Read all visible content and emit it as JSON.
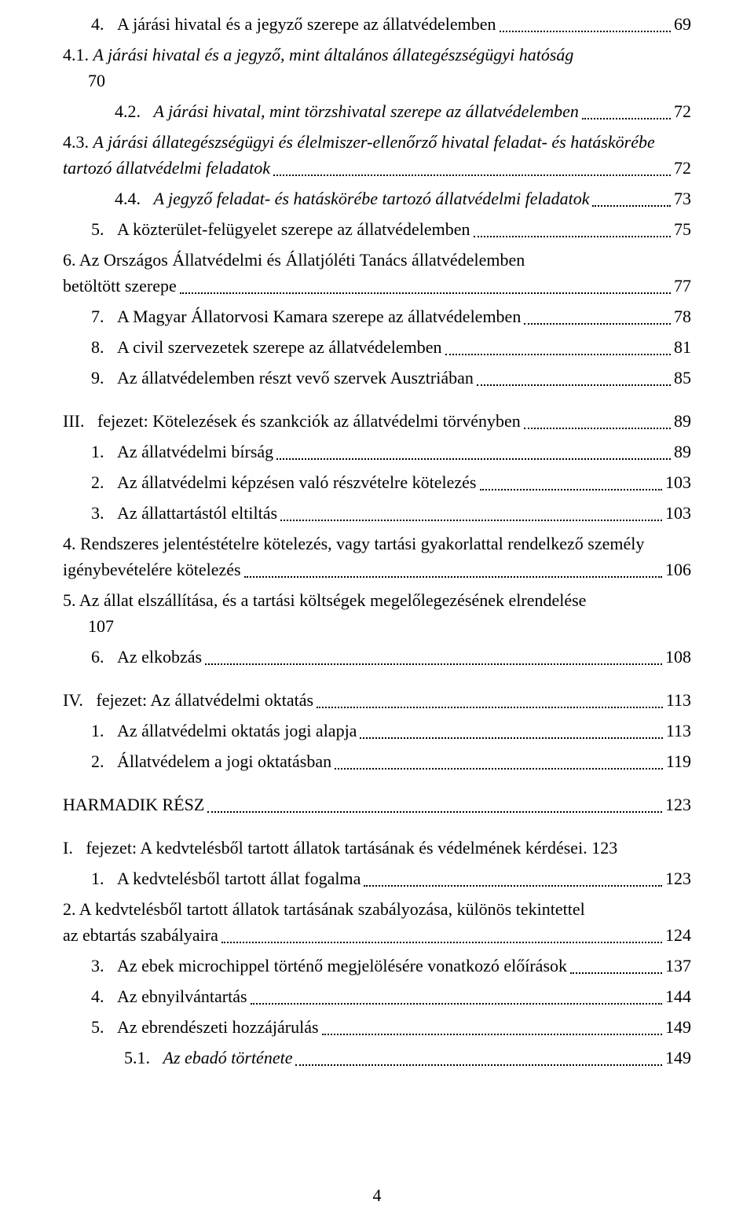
{
  "pageNumber": "4",
  "entries": [
    {
      "indent": "indent-1",
      "label": "4.   ",
      "title": "A járási hivatal és a jegyző szerepe az állatvédelemben",
      "page": "69",
      "italic": false,
      "wrap": false,
      "gap": false
    },
    {
      "indent": "indent-2",
      "label": "4.1.   ",
      "title": "A járási hivatal és a jegyző, mint általános állategészségügyi hatóság",
      "page": "",
      "italic": true,
      "wrap": true,
      "gap": false,
      "secondLine": "70"
    },
    {
      "indent": "indent-2",
      "label": "4.2.   ",
      "title": "A járási hivatal, mint törzshivatal szerepe az állatvédelemben",
      "page": " 72",
      "italic": true,
      "wrap": false,
      "gap": false
    },
    {
      "indent": "indent-2",
      "label": "4.3.   ",
      "title": "A járási állategészségügyi és élelmiszer-ellenőrző hivatal feladat- és hatáskörébe tartozó állatvédelmi feladatok",
      "page": " 72",
      "italic": true,
      "wrap": true,
      "gap": false
    },
    {
      "indent": "indent-2",
      "label": "4.4.   ",
      "title": "A jegyző feladat- és hatáskörébe tartozó állatvédelmi feladatok",
      "page": " 73",
      "italic": true,
      "wrap": false,
      "gap": false
    },
    {
      "indent": "indent-1",
      "label": "5.   ",
      "title": "A közterület-felügyelet szerepe az állatvédelemben",
      "page": " 75",
      "italic": false,
      "wrap": false,
      "gap": false
    },
    {
      "indent": "indent-1",
      "label": "6.   ",
      "title": "Az Országos Állatvédelmi és Állatjóléti Tanács állatvédelemben betöltött szerepe",
      "page": " 77",
      "italic": false,
      "wrap": true,
      "gap": false
    },
    {
      "indent": "indent-1",
      "label": "7.   ",
      "title": "A Magyar Állatorvosi Kamara szerepe az állatvédelemben",
      "page": " 78",
      "italic": false,
      "wrap": false,
      "gap": false
    },
    {
      "indent": "indent-1",
      "label": "8.   ",
      "title": "A civil szervezetek szerepe az állatvédelemben",
      "page": " 81",
      "italic": false,
      "wrap": false,
      "gap": false
    },
    {
      "indent": "indent-1",
      "label": "9.   ",
      "title": "Az állatvédelemben részt vevő szervek Ausztriában",
      "page": " 85",
      "italic": false,
      "wrap": false,
      "gap": false
    },
    {
      "indent": "indent-0",
      "label": "III.   ",
      "title": "fejezet: Kötelezések és szankciók az állatvédelmi törvényben",
      "page": " 89",
      "italic": false,
      "wrap": false,
      "gap": true
    },
    {
      "indent": "indent-1",
      "label": "1.   ",
      "title": "Az állatvédelmi bírság",
      "page": " 89",
      "italic": false,
      "wrap": false,
      "gap": false
    },
    {
      "indent": "indent-1",
      "label": "2.   ",
      "title": "Az állatvédelmi képzésen való részvételre kötelezés",
      "page": " 103",
      "italic": false,
      "wrap": false,
      "gap": false
    },
    {
      "indent": "indent-1",
      "label": "3.   ",
      "title": "Az állattartástól eltiltás",
      "page": " 103",
      "italic": false,
      "wrap": false,
      "gap": false
    },
    {
      "indent": "indent-1",
      "label": "4.   ",
      "title": "Rendszeres jelentéstételre kötelezés, vagy tartási gyakorlattal rendelkező személy igénybevételére kötelezés",
      "page": " 106",
      "italic": false,
      "wrap": true,
      "gap": false
    },
    {
      "indent": "indent-1",
      "label": "5.   ",
      "title": "Az állat elszállítása, és a tartási költségek megelőlegezésének elrendelése",
      "page": "",
      "italic": false,
      "wrap": true,
      "gap": false,
      "secondLine": "107"
    },
    {
      "indent": "indent-1",
      "label": "6.   ",
      "title": "Az elkobzás",
      "page": " 108",
      "italic": false,
      "wrap": false,
      "gap": false
    },
    {
      "indent": "indent-0",
      "label": "IV.   ",
      "title": "fejezet: Az állatvédelmi oktatás",
      "page": " 113",
      "italic": false,
      "wrap": false,
      "gap": true
    },
    {
      "indent": "indent-1",
      "label": "1.   ",
      "title": "Az állatvédelmi oktatás jogi alapja",
      "page": " 113",
      "italic": false,
      "wrap": false,
      "gap": false
    },
    {
      "indent": "indent-1",
      "label": "2.   ",
      "title": "Állatvédelem a jogi oktatásban",
      "page": " 119",
      "italic": false,
      "wrap": false,
      "gap": false
    },
    {
      "indent": "indent-0",
      "label": "",
      "title": "HARMADIK RÉSZ",
      "page": " 123",
      "italic": false,
      "wrap": false,
      "gap": true
    },
    {
      "indent": "indent-0",
      "label": "I.   ",
      "title": "fejezet: A kedvtelésből tartott állatok tartásának és védelmének kérdései",
      "page": ". 123",
      "italic": false,
      "wrap": false,
      "gap": true,
      "noDots": true
    },
    {
      "indent": "indent-1",
      "label": "1.   ",
      "title": "A kedvtelésből tartott állat fogalma",
      "page": " 123",
      "italic": false,
      "wrap": false,
      "gap": false
    },
    {
      "indent": "indent-1",
      "label": "2.   ",
      "title": "A kedvtelésből tartott állatok tartásának szabályozása, különös tekintettel az ebtartás szabályaira",
      "page": " 124",
      "italic": false,
      "wrap": true,
      "gap": false
    },
    {
      "indent": "indent-1",
      "label": "3.   ",
      "title": "Az ebek microchippel történő megjelölésére vonatkozó előírások",
      "page": " 137",
      "italic": false,
      "wrap": false,
      "gap": false
    },
    {
      "indent": "indent-1",
      "label": "4.   ",
      "title": "Az ebnyilvántartás",
      "page": " 144",
      "italic": false,
      "wrap": false,
      "gap": false
    },
    {
      "indent": "indent-1",
      "label": "5.   ",
      "title": "Az ebrendészeti hozzájárulás",
      "page": " 149",
      "italic": false,
      "wrap": false,
      "gap": false
    },
    {
      "indent": "indent-sub",
      "label": "5.1.   ",
      "title": "Az ebadó története",
      "page": " 149",
      "italic": true,
      "wrap": false,
      "gap": false
    }
  ]
}
